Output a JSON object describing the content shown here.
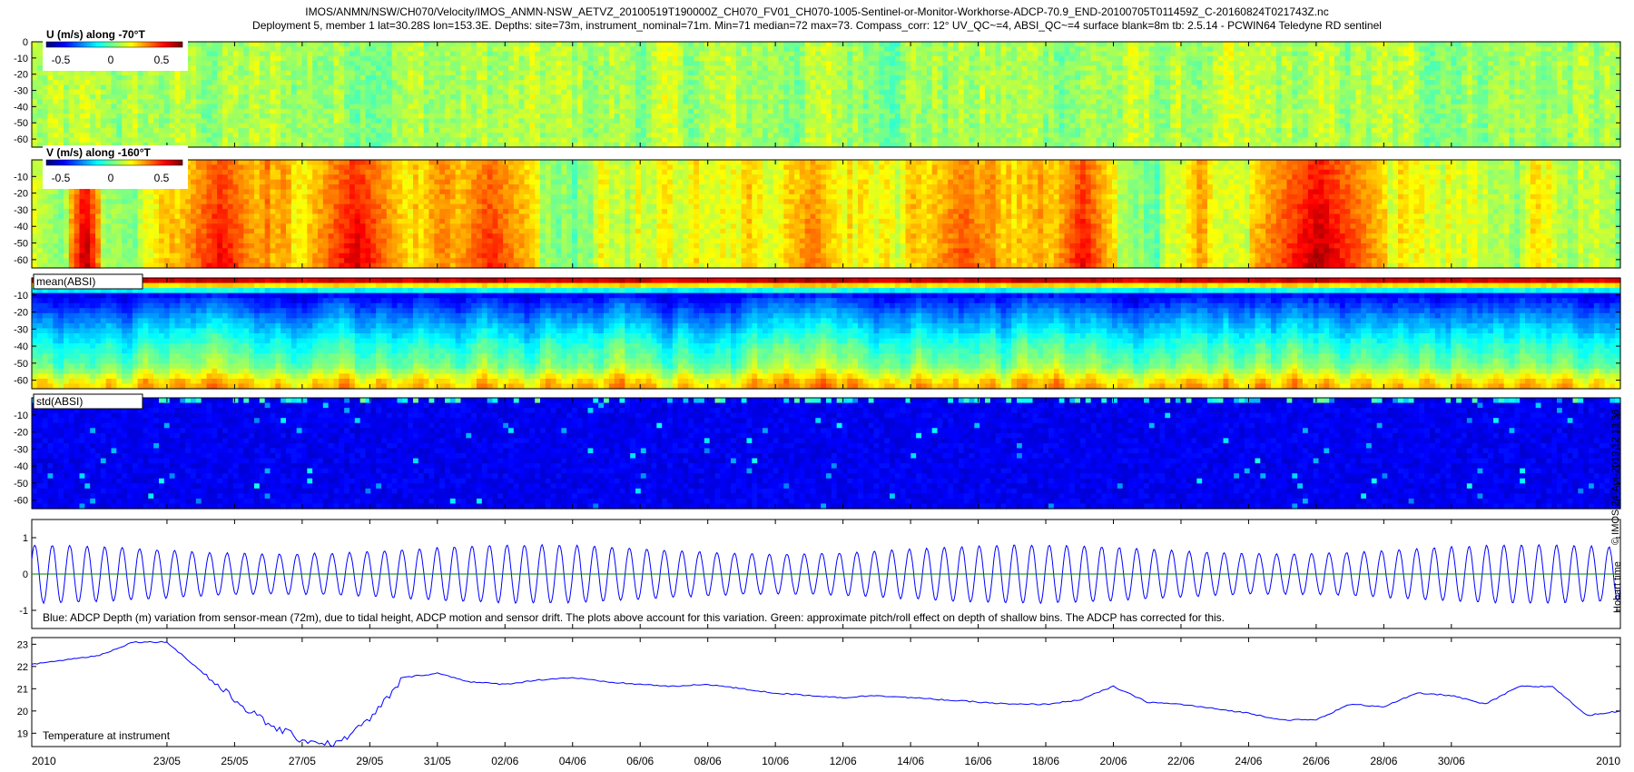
{
  "header": {
    "title_line1": "IMOS/ANMN/NSW/CH070/Velocity/IMOS_ANMN-NSW_AETVZ_20100519T190000Z_CH070_FV01_CH070-1005-Sentinel-or-Monitor-Workhorse-ADCP-70.9_END-20100705T011459Z_C-20160824T021743Z.nc",
    "title_line2": "Deployment 5, member 1 lat=30.28S lon=153.3E. Depths: site=73m, instrument_nominal=71m. Min=71 median=72 max=73. Compass_corr: 12° UV_QC~=4, ABSI_QC~=4 surface blank=8m tb: 2.5.14 - PCWIN64 Teledyne RD sentinel"
  },
  "side_text": "© IMOS 24-Apr-2019 12:13:36",
  "side_text2": "Hobart time",
  "colors": {
    "series_line": "#0000ff",
    "pitch_roll_line": "#008000",
    "colormap": "jet"
  },
  "chart_data": [
    {
      "type": "heatmap",
      "panel": "u_velocity",
      "label": "U (m/s) along -70°T",
      "colorbar_ticks": [
        "-0.5",
        "0",
        "0.5"
      ],
      "value_range": [
        -0.7,
        0.7
      ],
      "yticks": [
        "0",
        "-10",
        "-20",
        "-30",
        "-40",
        "-50",
        "-60"
      ],
      "ylim": [
        -65,
        0
      ],
      "typical_value": 0.05,
      "variability": 0.25
    },
    {
      "type": "heatmap",
      "panel": "v_velocity",
      "label": "V (m/s) along -160°T",
      "colorbar_ticks": [
        "-0.5",
        "0",
        "0.5"
      ],
      "value_range": [
        -0.7,
        0.7
      ],
      "yticks": [
        "-10",
        "-20",
        "-30",
        "-40",
        "-50",
        "-60"
      ],
      "ylim": [
        -65,
        0
      ],
      "episodes": [
        {
          "start": "20/05",
          "end": "21/05",
          "value": 0.65
        },
        {
          "start": "23/05",
          "end": "26/05",
          "value": 0.55
        },
        {
          "start": "27/05",
          "end": "30/05",
          "value": 0.6
        },
        {
          "start": "31/05",
          "end": "03/06",
          "value": 0.5
        },
        {
          "start": "10/06",
          "end": "12/06",
          "value": 0.4
        },
        {
          "start": "14/06",
          "end": "17/06",
          "value": 0.45
        },
        {
          "start": "18/06",
          "end": "20/06",
          "value": 0.55
        },
        {
          "start": "24/06",
          "end": "28/06",
          "value": 0.65
        }
      ]
    },
    {
      "type": "heatmap",
      "panel": "mean_absi",
      "label": "mean(ABSI)",
      "yticks": [
        "-10",
        "-20",
        "-30",
        "-40",
        "-50",
        "-60"
      ],
      "ylim": [
        -65,
        0
      ],
      "normalized_profile": [
        {
          "depth": -1,
          "value": 0.95
        },
        {
          "depth": -5,
          "value": 0.6
        },
        {
          "depth": -10,
          "value": 0.12
        },
        {
          "depth": -25,
          "value": 0.28
        },
        {
          "depth": -40,
          "value": 0.42
        },
        {
          "depth": -52,
          "value": 0.5
        },
        {
          "depth": -62,
          "value": 0.68
        }
      ]
    },
    {
      "type": "heatmap",
      "panel": "std_absi",
      "label": "std(ABSI)",
      "yticks": [
        "-10",
        "-20",
        "-30",
        "-40",
        "-50",
        "-60"
      ],
      "ylim": [
        -65,
        0
      ],
      "background_value": 0.08
    },
    {
      "type": "line",
      "panel": "depth_variation",
      "annotation": "Blue: ADCP Depth (m) variation from sensor-mean (72m), due to tidal height, ADCP motion and sensor drift. The plots above account for this variation. Green: approximate pitch/roll effect on depth of shallow bins. The ADCP has corrected for this.",
      "yticks": [
        "1",
        "0",
        "-1"
      ],
      "ylim": [
        -1.5,
        1.5
      ],
      "tidal_period_hours": 12.42,
      "amplitude_min": 0.55,
      "amplitude_max": 0.8,
      "pitch_roll_level": 0.0,
      "series": [
        {
          "name": "Blue",
          "quantity": "ADCP Depth variation (m)"
        },
        {
          "name": "Green",
          "quantity": "pitch/roll effect (m)"
        }
      ]
    },
    {
      "type": "line",
      "panel": "temperature",
      "annotation": "Temperature at instrument",
      "yticks": [
        "23",
        "22",
        "21",
        "20",
        "19"
      ],
      "ylim": [
        18.4,
        23.3
      ],
      "x": [
        "2010-05-19",
        "2010-05-20",
        "2010-05-21",
        "2010-05-22",
        "2010-05-23",
        "2010-05-24",
        "2010-05-25",
        "2010-05-26",
        "2010-05-27",
        "2010-05-28",
        "2010-05-29",
        "2010-05-30",
        "2010-05-31",
        "2010-06-01",
        "2010-06-02",
        "2010-06-03",
        "2010-06-04",
        "2010-06-05",
        "2010-06-06",
        "2010-06-07",
        "2010-06-08",
        "2010-06-09",
        "2010-06-10",
        "2010-06-11",
        "2010-06-12",
        "2010-06-13",
        "2010-06-14",
        "2010-06-15",
        "2010-06-16",
        "2010-06-17",
        "2010-06-18",
        "2010-06-19",
        "2010-06-20",
        "2010-06-21",
        "2010-06-22",
        "2010-06-23",
        "2010-06-24",
        "2010-06-25",
        "2010-06-26",
        "2010-06-27",
        "2010-06-28",
        "2010-06-29",
        "2010-06-30",
        "2010-07-01",
        "2010-07-02",
        "2010-07-03",
        "2010-07-04",
        "2010-07-05"
      ],
      "y": [
        22.1,
        22.3,
        22.5,
        23.1,
        23.1,
        21.8,
        20.5,
        19.4,
        18.7,
        18.5,
        19.6,
        21.5,
        21.7,
        21.3,
        21.2,
        21.4,
        21.5,
        21.3,
        21.2,
        21.1,
        21.2,
        21.0,
        20.8,
        20.7,
        20.6,
        20.7,
        20.6,
        20.5,
        20.4,
        20.3,
        20.3,
        20.5,
        21.1,
        20.4,
        20.3,
        20.1,
        19.9,
        19.6,
        19.6,
        20.3,
        20.2,
        20.8,
        20.7,
        20.3,
        21.1,
        21.1,
        19.8,
        20.0
      ]
    }
  ],
  "x_axis": {
    "ticks": [
      "2010",
      "23/05",
      "25/05",
      "27/05",
      "29/05",
      "31/05",
      "02/06",
      "04/06",
      "06/06",
      "08/06",
      "10/06",
      "12/06",
      "14/06",
      "16/06",
      "18/06",
      "20/06",
      "22/06",
      "24/06",
      "26/06",
      "28/06",
      "30/06",
      "2010"
    ],
    "start": "2010-05-19",
    "end": "2010-07-05"
  }
}
